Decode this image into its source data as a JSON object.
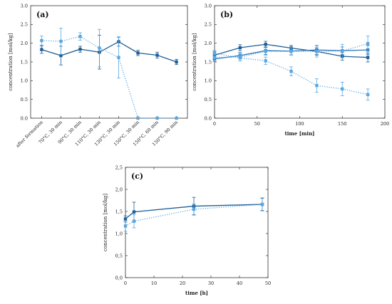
{
  "chart_data": [
    {
      "type": "line",
      "panel_label": "(a)",
      "ylabel": "concentration [mol/kg]",
      "xlabel": "",
      "x_kind": "category",
      "categories": [
        "after formation",
        "70°C, 30 min",
        "90°C, 30 min",
        "110°C, 30 min",
        "130°C, 30 min",
        "150°C, 30 min",
        "150°C, 60 min",
        "150°C, 90 min"
      ],
      "ylim": [
        0,
        3
      ],
      "yticks": [
        0.0,
        0.5,
        1.0,
        1.5,
        2.0,
        2.5,
        3.0
      ],
      "ytick_labels": [
        "0.0",
        "0.5",
        "1.0",
        "1.5",
        "2.0",
        "2.5",
        "3.0"
      ],
      "series": [
        {
          "values": [
            1.83,
            1.67,
            1.84,
            1.76,
            2.04,
            1.74,
            1.68,
            1.5
          ],
          "errors": [
            0.1,
            0.25,
            0.08,
            0.45,
            0.12,
            0.07,
            0.08,
            0.07
          ],
          "color": "#1f5f97",
          "style": "solid",
          "marker": "square"
        },
        {
          "values": [
            2.07,
            2.05,
            2.18,
            1.87,
            1.62,
            0.0,
            0.0,
            0.0
          ],
          "errors": [
            0.12,
            0.35,
            0.1,
            0.5,
            0.55,
            0.0,
            0.0,
            0.0
          ],
          "color": "#5aa7e0",
          "style": "dotted",
          "marker": "square"
        }
      ]
    },
    {
      "type": "line",
      "panel_label": "(b)",
      "ylabel": "concentration [mol/kg]",
      "xlabel": "time [min]",
      "x_kind": "numeric",
      "xlim": [
        0,
        200
      ],
      "xticks": [
        0,
        50,
        100,
        150,
        200
      ],
      "ylim": [
        0,
        3
      ],
      "yticks": [
        0.0,
        0.5,
        1.0,
        1.5,
        2.0,
        2.5,
        3.0
      ],
      "ytick_labels": [
        "0.0",
        "0.5",
        "1.0",
        "1.5",
        "2.0",
        "2.5",
        "3.0"
      ],
      "series": [
        {
          "x": [
            0,
            30,
            60,
            90,
            120,
            150,
            180
          ],
          "values": [
            1.68,
            1.88,
            1.97,
            1.87,
            1.78,
            1.65,
            1.62
          ],
          "errors": [
            0.1,
            0.08,
            0.08,
            0.07,
            0.1,
            0.1,
            0.12
          ],
          "color": "#1f5f97",
          "style": "solid",
          "marker": "square"
        },
        {
          "x": [
            0,
            30,
            60,
            90,
            120,
            150,
            180
          ],
          "values": [
            1.58,
            1.67,
            1.8,
            1.79,
            1.82,
            1.8,
            1.82
          ],
          "errors": [
            0.07,
            0.08,
            0.1,
            0.1,
            0.12,
            0.1,
            0.12
          ],
          "color": "#2e78bd",
          "style": "solid",
          "marker": "square"
        },
        {
          "x": [
            0,
            30,
            60,
            90,
            120,
            150,
            180
          ],
          "values": [
            1.62,
            1.63,
            1.78,
            1.78,
            1.78,
            1.79,
            1.99
          ],
          "errors": [
            0.1,
            0.1,
            0.1,
            0.1,
            0.15,
            0.18,
            0.2
          ],
          "color": "#5aa7e0",
          "style": "dotted",
          "marker": "square"
        },
        {
          "x": [
            0,
            30,
            60,
            90,
            120,
            150,
            180
          ],
          "values": [
            1.73,
            1.61,
            1.53,
            1.25,
            0.87,
            0.78,
            0.63
          ],
          "errors": [
            0.08,
            0.08,
            0.1,
            0.12,
            0.18,
            0.18,
            0.15
          ],
          "color": "#5aa7e0",
          "style": "dotted",
          "marker": "square"
        }
      ]
    },
    {
      "type": "line",
      "panel_label": "(c)",
      "ylabel": "concentration [mol/kg]",
      "xlabel": "time [h]",
      "x_kind": "numeric",
      "xlim": [
        0,
        50
      ],
      "xticks": [
        0,
        10,
        20,
        30,
        40,
        50
      ],
      "ylim": [
        0,
        2.5
      ],
      "yticks": [
        0.0,
        0.5,
        1.0,
        1.5,
        2.0,
        2.5
      ],
      "ytick_labels": [
        "0,0",
        "0,5",
        "1,0",
        "1,5",
        "2,0",
        "2,5"
      ],
      "series": [
        {
          "x": [
            0,
            3,
            24,
            48
          ],
          "values": [
            1.33,
            1.49,
            1.62,
            1.66
          ],
          "errors": [
            0.07,
            0.22,
            0.2,
            0.14
          ],
          "color": "#1f5f97",
          "style": "solid",
          "marker": "square"
        },
        {
          "x": [
            0,
            3,
            24,
            48
          ],
          "values": [
            1.17,
            1.28,
            1.55,
            1.66
          ],
          "errors": [
            0.12,
            0.15,
            0.12,
            0.15
          ],
          "color": "#5aa7e0",
          "style": "dotted",
          "marker": "square"
        }
      ]
    }
  ]
}
